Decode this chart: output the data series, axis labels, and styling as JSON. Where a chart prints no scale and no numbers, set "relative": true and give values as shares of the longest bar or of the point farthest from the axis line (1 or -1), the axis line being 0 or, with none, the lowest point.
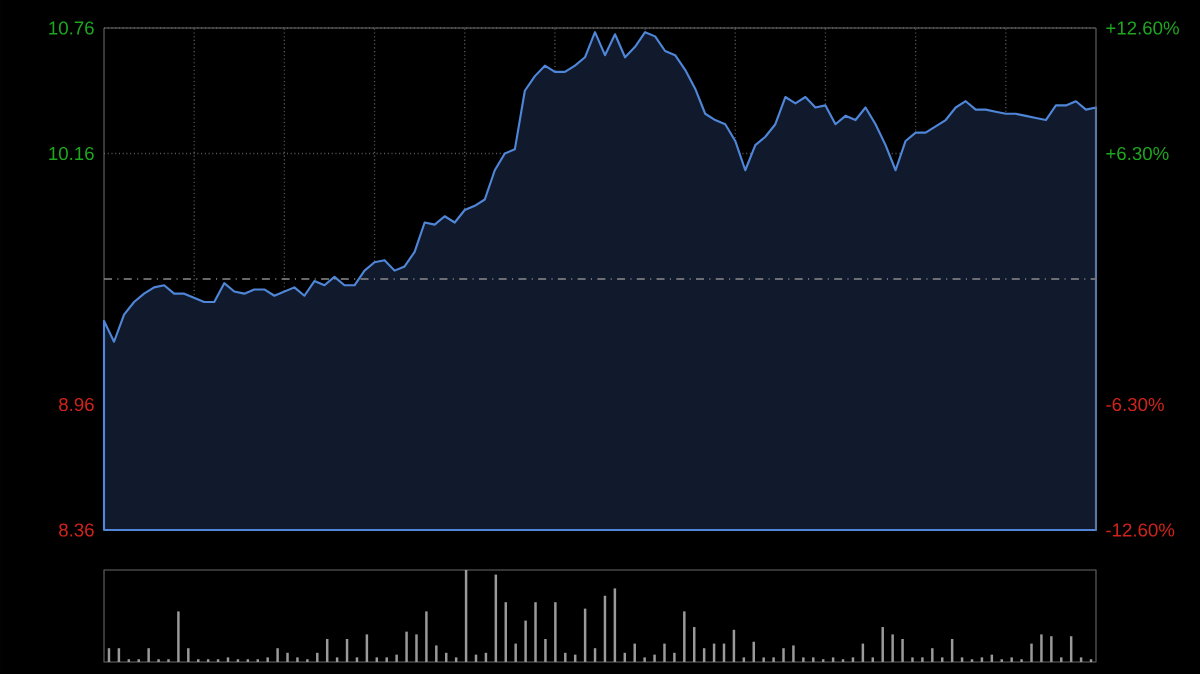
{
  "chart_data": [
    {
      "type": "area",
      "categories": [
        null,
        null,
        null,
        null,
        null,
        null,
        null,
        null,
        null,
        null,
        null,
        null,
        null,
        null,
        null,
        null,
        null,
        null,
        null,
        null,
        null,
        null,
        null,
        null,
        null,
        null,
        null,
        null,
        null,
        null,
        null,
        null,
        null,
        null,
        null,
        null,
        null,
        null,
        null,
        null,
        null,
        null,
        null,
        null,
        null,
        null,
        null,
        null,
        null,
        null,
        null,
        null,
        null,
        null,
        null,
        null,
        null,
        null,
        null,
        null,
        null,
        null,
        null,
        null,
        null,
        null,
        null,
        null,
        null,
        null,
        null,
        null,
        null,
        null,
        null,
        null,
        null,
        null,
        null,
        null,
        null,
        null,
        null,
        null,
        null,
        null,
        null,
        null,
        null,
        null,
        null,
        null,
        null,
        null,
        null,
        null,
        null,
        null,
        null,
        null
      ],
      "series": [
        {
          "color": "#4f86d8",
          "values": [
            9.36,
            9.26,
            9.39,
            9.45,
            9.49,
            9.52,
            9.53,
            9.49,
            9.49,
            9.47,
            9.45,
            9.45,
            9.54,
            9.5,
            9.49,
            9.51,
            9.51,
            9.48,
            9.5,
            9.52,
            9.48,
            9.55,
            9.53,
            9.57,
            9.53,
            9.53,
            9.6,
            9.64,
            9.65,
            9.6,
            9.62,
            9.69,
            9.83,
            9.82,
            9.86,
            9.83,
            9.89,
            9.91,
            9.94,
            10.08,
            10.16,
            10.18,
            10.46,
            10.53,
            10.58,
            10.55,
            10.55,
            10.58,
            10.62,
            10.74,
            10.63,
            10.73,
            10.62,
            10.67,
            10.74,
            10.72,
            10.65,
            10.63,
            10.56,
            10.47,
            10.35,
            10.32,
            10.3,
            10.22,
            10.08,
            10.2,
            10.24,
            10.3,
            10.43,
            10.4,
            10.43,
            10.38,
            10.39,
            10.3,
            10.34,
            10.32,
            10.38,
            10.3,
            10.2,
            10.08,
            10.22,
            10.26,
            10.26,
            10.29,
            10.32,
            10.38,
            10.41,
            10.37,
            10.37,
            10.36,
            10.35,
            10.35,
            10.34,
            10.33,
            10.32,
            10.39,
            10.39,
            10.41,
            10.37,
            10.38
          ]
        }
      ],
      "ylim": [
        8.36,
        10.76
      ],
      "yticks": [
        8.36,
        8.96,
        10.16,
        10.76
      ],
      "y2lim": [
        -12.6,
        12.6
      ],
      "y2ticks": [
        {
          "value": -12.6,
          "label": "-12.60%"
        },
        {
          "value": -6.3,
          "label": "-6.30%"
        },
        {
          "value": 6.3,
          "label": "+6.30%"
        },
        {
          "value": 12.6,
          "label": "+12.60%"
        }
      ],
      "ref_lines": [
        {
          "axis": "y",
          "value": 9.56,
          "line_style": "dashed"
        }
      ],
      "grid": true
    },
    {
      "type": "bar",
      "relative": true,
      "categories": [
        null,
        null,
        null,
        null,
        null,
        null,
        null,
        null,
        null,
        null,
        null,
        null,
        null,
        null,
        null,
        null,
        null,
        null,
        null,
        null,
        null,
        null,
        null,
        null,
        null,
        null,
        null,
        null,
        null,
        null,
        null,
        null,
        null,
        null,
        null,
        null,
        null,
        null,
        null,
        null,
        null,
        null,
        null,
        null,
        null,
        null,
        null,
        null,
        null,
        null,
        null,
        null,
        null,
        null,
        null,
        null,
        null,
        null,
        null,
        null,
        null,
        null,
        null,
        null,
        null,
        null,
        null,
        null,
        null,
        null,
        null,
        null,
        null,
        null,
        null,
        null,
        null,
        null,
        null,
        null,
        null,
        null,
        null,
        null,
        null,
        null,
        null,
        null,
        null,
        null,
        null,
        null,
        null,
        null,
        null,
        null,
        null,
        null,
        null,
        null
      ],
      "color": "#9a9a9a",
      "values": [
        0.15,
        0.15,
        0.03,
        0.03,
        0.15,
        0.03,
        0.03,
        0.55,
        0.15,
        0.03,
        0.03,
        0.03,
        0.05,
        0.03,
        0.03,
        0.03,
        0.05,
        0.15,
        0.1,
        0.05,
        0.03,
        0.1,
        0.25,
        0.05,
        0.25,
        0.05,
        0.3,
        0.05,
        0.05,
        0.08,
        0.33,
        0.3,
        0.55,
        0.18,
        0.1,
        0.05,
        1.0,
        0.08,
        0.1,
        0.95,
        0.65,
        0.2,
        0.45,
        0.65,
        0.25,
        0.65,
        0.1,
        0.08,
        0.58,
        0.15,
        0.72,
        0.8,
        0.1,
        0.2,
        0.05,
        0.08,
        0.2,
        0.1,
        0.55,
        0.38,
        0.15,
        0.2,
        0.2,
        0.35,
        0.05,
        0.22,
        0.05,
        0.05,
        0.15,
        0.18,
        0.05,
        0.05,
        0.03,
        0.05,
        0.03,
        0.05,
        0.2,
        0.05,
        0.38,
        0.3,
        0.25,
        0.05,
        0.05,
        0.15,
        0.05,
        0.25,
        0.05,
        0.03,
        0.05,
        0.08,
        0.03,
        0.05,
        0.03,
        0.2,
        0.3,
        0.28,
        0.05,
        0.28,
        0.05,
        0.03
      ]
    }
  ]
}
